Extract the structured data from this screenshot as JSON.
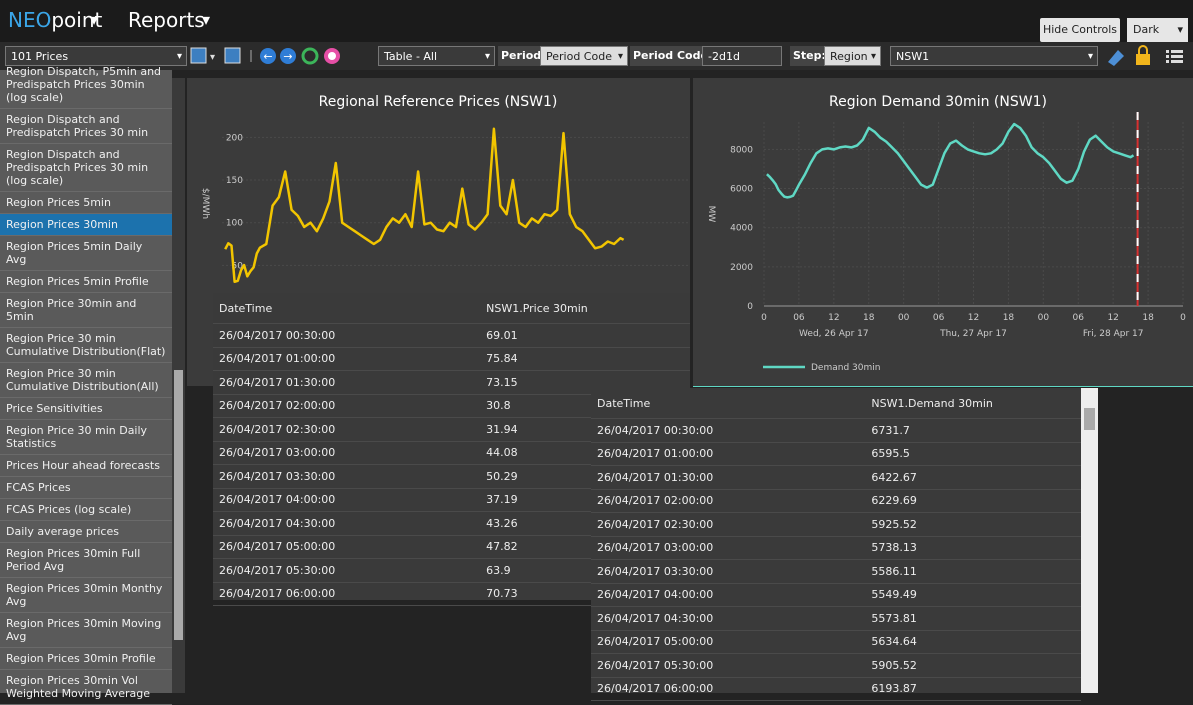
{
  "header": {
    "brand_prefix": "NEO",
    "brand_suffix": "point",
    "menu": "Reports",
    "hide_button": "Hide Controls",
    "theme": "Dark"
  },
  "toolbar": {
    "report_select": "101 Prices",
    "view_select": "Table - All",
    "period_label": "Period:",
    "period_select": "Period Code",
    "period_code_label": "Period Code:",
    "period_code": "-2d1d",
    "step_label": "Step:",
    "step_select": "Region",
    "region_select": "NSW1"
  },
  "sidebar": {
    "items": [
      "Region Dispatch, P5min and Predispatch Prices 30min (log scale)",
      "Region Dispatch and Predispatch Prices 30 min",
      "Region Dispatch and Predispatch Prices 30 min (log scale)",
      "Region Prices 5min",
      "Region Prices 30min",
      "Region Prices 5min Daily Avg",
      "Region Prices 5min Profile",
      "Region Price 30min and 5min",
      "Region Price 30 min Cumulative Distribution(Flat)",
      "Region Price 30 min Cumulative Distribution(All)",
      "Price Sensitivities",
      "Region Price 30 min Daily Statistics",
      "Prices Hour ahead forecasts",
      "FCAS Prices",
      "FCAS Prices (log scale)",
      "Daily average prices",
      "Region Prices 30min Full Period Avg",
      "Region Prices 30min Monthy Avg",
      "Region Prices 30min Moving Avg",
      "Region Prices 30min Profile",
      "Region Prices 30min Vol Weighted Moving Average"
    ],
    "selected": 4
  },
  "price_chart": {
    "type": "line",
    "title": "Regional Reference Prices (NSW1)",
    "ylabel": "$/MWh",
    "color": "#f2c500",
    "x": [
      0.5,
      1,
      1.5,
      2,
      2.5,
      3,
      3.5,
      4,
      4.5,
      5,
      5.5,
      6,
      7,
      8,
      9,
      10,
      11,
      12,
      13,
      14,
      15,
      16,
      17,
      18,
      19,
      20,
      21,
      22,
      23,
      24,
      25,
      26,
      27,
      28,
      29,
      30,
      31,
      32,
      33,
      34,
      35,
      36,
      37,
      38,
      39,
      40,
      41,
      42,
      43,
      44,
      45,
      46,
      47,
      48,
      49,
      50,
      51,
      52,
      53,
      54,
      55,
      56,
      57,
      58,
      59,
      60,
      61,
      62,
      63,
      63.5
    ],
    "values": [
      69.01,
      75.84,
      73.15,
      30.8,
      31.94,
      44.08,
      50.29,
      37.19,
      43.26,
      47.82,
      63.9,
      70.73,
      75,
      120,
      130,
      160,
      115,
      108,
      95,
      100,
      90,
      105,
      125,
      170,
      100,
      95,
      90,
      85,
      80,
      75,
      80,
      95,
      105,
      100,
      110,
      95,
      160,
      98,
      100,
      92,
      90,
      100,
      95,
      140,
      98,
      92,
      100,
      110,
      210,
      120,
      110,
      150,
      100,
      95,
      105,
      100,
      110,
      108,
      115,
      205,
      110,
      95,
      90,
      80,
      70,
      72,
      78,
      75,
      82,
      80
    ],
    "xlim": [
      0,
      74
    ],
    "ylim": [
      20,
      225
    ],
    "yticks": [
      50,
      100,
      150,
      200
    ],
    "grid": true
  },
  "demand_chart": {
    "type": "line",
    "title": "Region Demand 30min (NSW1)",
    "ylabel": "MW",
    "legend": "Demand 30min",
    "color": "#5fd8c4",
    "x": [
      0.5,
      1,
      1.5,
      2,
      2.5,
      3,
      3.5,
      4,
      4.5,
      5,
      5.5,
      6,
      7,
      8,
      9,
      10,
      11,
      12,
      13,
      14,
      15,
      16,
      17,
      18,
      19,
      20,
      21,
      22,
      23,
      24,
      25,
      26,
      27,
      28,
      29,
      30,
      31,
      32,
      33,
      34,
      35,
      36,
      37,
      38,
      39,
      40,
      41,
      42,
      43,
      44,
      45,
      46,
      47,
      48,
      49,
      50,
      51,
      52,
      53,
      54,
      55,
      56,
      57,
      58,
      59,
      60,
      61,
      62,
      63,
      63.5
    ],
    "values": [
      6731.7,
      6595.5,
      6422.67,
      6229.69,
      5925.52,
      5738.13,
      5586.11,
      5549.49,
      5573.81,
      5634.64,
      5905.52,
      6193.87,
      6700,
      7300,
      7800,
      8000,
      8050,
      8000,
      8100,
      8150,
      8100,
      8200,
      8500,
      9100,
      8900,
      8600,
      8400,
      8100,
      7800,
      7400,
      7000,
      6600,
      6200,
      6050,
      6200,
      7000,
      7800,
      8300,
      8450,
      8200,
      8000,
      7900,
      7800,
      7750,
      7800,
      8000,
      8300,
      8900,
      9300,
      9100,
      8700,
      8100,
      7800,
      7600,
      7300,
      6900,
      6500,
      6300,
      6400,
      7000,
      7900,
      8500,
      8700,
      8400,
      8100,
      7900,
      7800,
      7700,
      7600,
      7700
    ],
    "xlim": [
      0,
      72
    ],
    "ylim": [
      0,
      9400
    ],
    "yticks": [
      0,
      2000,
      4000,
      6000,
      8000
    ],
    "xticks": [
      {
        "value": 0,
        "label": "0"
      },
      {
        "value": 6,
        "label": "06"
      },
      {
        "value": 12,
        "label": "12"
      },
      {
        "value": 18,
        "label": "18"
      },
      {
        "value": 24,
        "label": "00"
      },
      {
        "value": 30,
        "label": "06"
      },
      {
        "value": 36,
        "label": "12"
      },
      {
        "value": 42,
        "label": "18"
      },
      {
        "value": 48,
        "label": "00"
      },
      {
        "value": 54,
        "label": "06"
      },
      {
        "value": 60,
        "label": "12"
      },
      {
        "value": 66,
        "label": "18"
      },
      {
        "value": 72,
        "label": "0"
      }
    ],
    "date_ticks": [
      {
        "value": 12,
        "label": "Wed, 26 Apr 17"
      },
      {
        "value": 36,
        "label": "Thu, 27 Apr 17"
      },
      {
        "value": 60,
        "label": "Fri, 28 Apr 17"
      }
    ],
    "marker_x": 64.2,
    "grid": true
  },
  "price_table": {
    "columns": [
      "DateTime",
      "NSW1.Price 30min"
    ],
    "rows": [
      [
        "26/04/2017 00:30:00",
        "69.01"
      ],
      [
        "26/04/2017 01:00:00",
        "75.84"
      ],
      [
        "26/04/2017 01:30:00",
        "73.15"
      ],
      [
        "26/04/2017 02:00:00",
        "30.8"
      ],
      [
        "26/04/2017 02:30:00",
        "31.94"
      ],
      [
        "26/04/2017 03:00:00",
        "44.08"
      ],
      [
        "26/04/2017 03:30:00",
        "50.29"
      ],
      [
        "26/04/2017 04:00:00",
        "37.19"
      ],
      [
        "26/04/2017 04:30:00",
        "43.26"
      ],
      [
        "26/04/2017 05:00:00",
        "47.82"
      ],
      [
        "26/04/2017 05:30:00",
        "63.9"
      ],
      [
        "26/04/2017 06:00:00",
        "70.73"
      ]
    ]
  },
  "demand_table": {
    "columns": [
      "DateTime",
      "NSW1.Demand 30min"
    ],
    "rows": [
      [
        "26/04/2017 00:30:00",
        "6731.7"
      ],
      [
        "26/04/2017 01:00:00",
        "6595.5"
      ],
      [
        "26/04/2017 01:30:00",
        "6422.67"
      ],
      [
        "26/04/2017 02:00:00",
        "6229.69"
      ],
      [
        "26/04/2017 02:30:00",
        "5925.52"
      ],
      [
        "26/04/2017 03:00:00",
        "5738.13"
      ],
      [
        "26/04/2017 03:30:00",
        "5586.11"
      ],
      [
        "26/04/2017 04:00:00",
        "5549.49"
      ],
      [
        "26/04/2017 04:30:00",
        "5573.81"
      ],
      [
        "26/04/2017 05:00:00",
        "5634.64"
      ],
      [
        "26/04/2017 05:30:00",
        "5905.52"
      ],
      [
        "26/04/2017 06:00:00",
        "6193.87"
      ]
    ]
  }
}
